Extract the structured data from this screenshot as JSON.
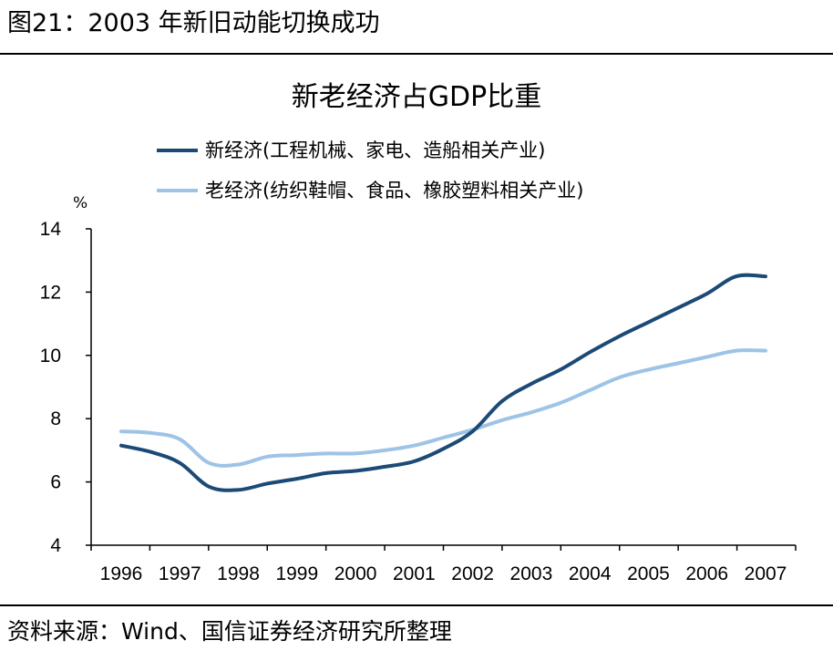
{
  "header": {
    "title": "图21：2003 年新旧动能切换成功"
  },
  "footer": {
    "source": "资料来源：Wind、国信证券经济研究所整理"
  },
  "chart_data": {
    "type": "line",
    "title": "新老经济占GDP比重",
    "xlabel": "",
    "ylabel": "%",
    "categories": [
      "1996",
      "1997",
      "1998",
      "1999",
      "2000",
      "2001",
      "2002",
      "2003",
      "2004",
      "2005",
      "2006",
      "2007"
    ],
    "ylim": [
      4,
      14
    ],
    "yticks": [
      4,
      6,
      8,
      10,
      12,
      14
    ],
    "grid": false,
    "legend_position": "top",
    "series": [
      {
        "name": "新经济(工程机械、家电、造船相关产业)",
        "color": "#1c4a76",
        "x": [
          1996,
          1996.5,
          1997,
          1997.5,
          1998,
          1998.5,
          1999,
          1999.5,
          2000,
          2000.5,
          2001,
          2001.5,
          2002,
          2002.5,
          2003,
          2003.5,
          2004,
          2004.5,
          2005,
          2005.5,
          2006,
          2006.5,
          2007
        ],
        "values": [
          7.15,
          6.95,
          6.6,
          5.85,
          5.75,
          5.95,
          6.1,
          6.28,
          6.35,
          6.48,
          6.65,
          7.05,
          7.6,
          8.55,
          9.1,
          9.55,
          10.1,
          10.6,
          11.05,
          11.5,
          11.95,
          12.5,
          12.5
        ]
      },
      {
        "name": "老经济(纺织鞋帽、食品、橡胶塑料相关产业)",
        "color": "#9dc3e6",
        "x": [
          1996,
          1996.5,
          1997,
          1997.5,
          1998,
          1998.5,
          1999,
          1999.5,
          2000,
          2000.5,
          2001,
          2001.5,
          2002,
          2002.5,
          2003,
          2003.5,
          2004,
          2004.5,
          2005,
          2005.5,
          2006,
          2006.5,
          2007
        ],
        "values": [
          7.6,
          7.55,
          7.35,
          6.6,
          6.55,
          6.8,
          6.85,
          6.9,
          6.9,
          7.0,
          7.15,
          7.4,
          7.65,
          7.95,
          8.2,
          8.5,
          8.9,
          9.3,
          9.55,
          9.75,
          9.95,
          10.15,
          10.15
        ]
      }
    ]
  }
}
